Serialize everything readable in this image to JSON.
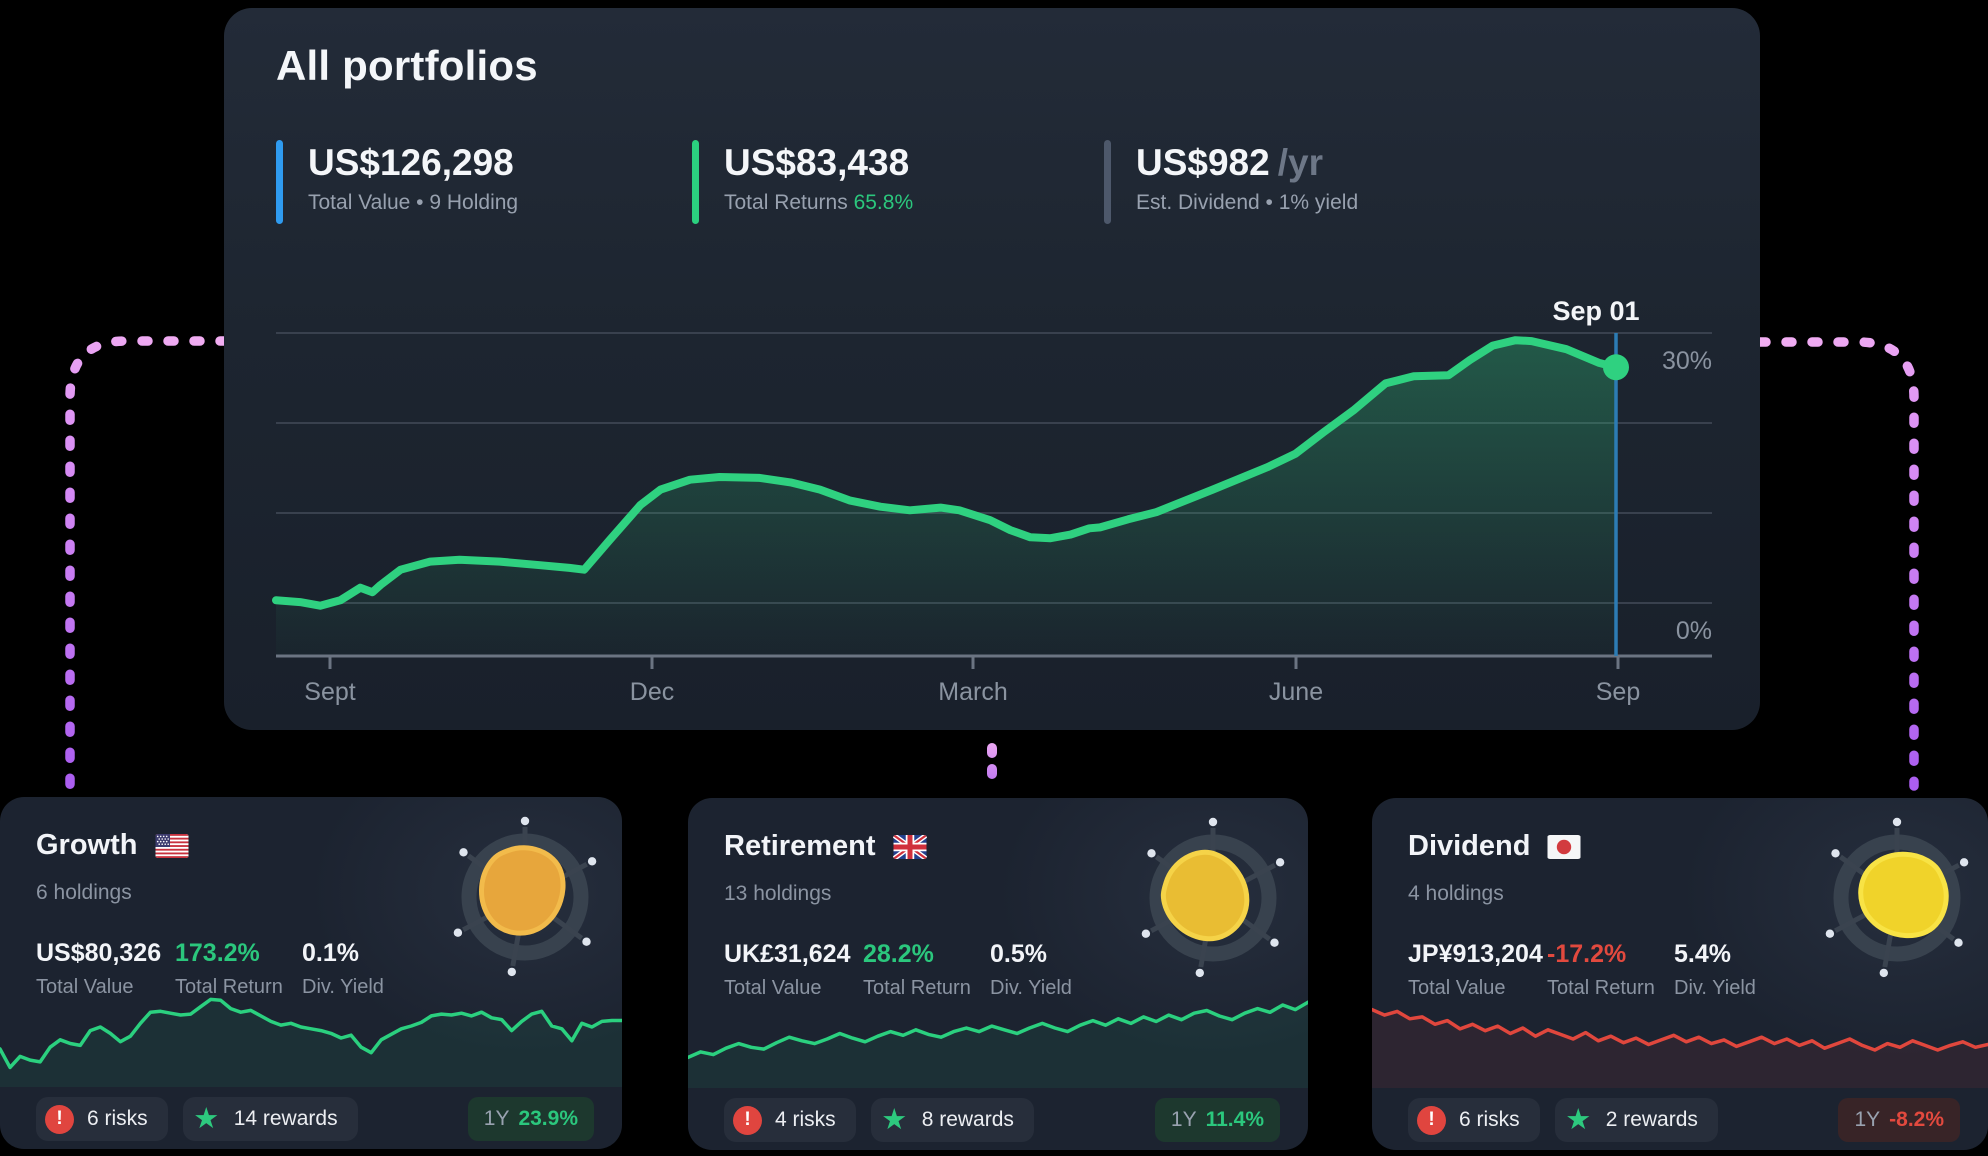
{
  "page": {
    "bg": "#000000"
  },
  "main_card": {
    "title": "All portfolios",
    "stats": [
      {
        "value": "US$126,298",
        "suffix": "",
        "label": "Total Value • 9 Holding",
        "label_highlight": "",
        "accent": "#2f9bf0"
      },
      {
        "value": "US$83,438",
        "suffix": "",
        "label": "Total Returns",
        "label_highlight": "65.8%",
        "accent": "#2bd07f"
      },
      {
        "value": "US$982",
        "suffix": "/yr",
        "label": "Est. Dividend • 1% yield",
        "label_highlight": "",
        "accent": "#4d586b"
      }
    ],
    "chart": {
      "type": "area",
      "tooltip": "Sep 01",
      "x_labels": [
        "Sept",
        "Dec",
        "March",
        "June",
        "Sep"
      ],
      "y_labels": [
        {
          "text": "30%",
          "pct": 30
        },
        {
          "text": "0%",
          "pct": 0
        }
      ],
      "line_color": "#2fd180",
      "cursor_color": "#2d7cb4",
      "series": [
        [
          0,
          0.3
        ],
        [
          0.018,
          0.1
        ],
        [
          0.033,
          -0.3
        ],
        [
          0.048,
          0.3
        ],
        [
          0.063,
          1.7
        ],
        [
          0.072,
          1.2
        ],
        [
          0.078,
          2.0
        ],
        [
          0.093,
          3.7
        ],
        [
          0.115,
          4.6
        ],
        [
          0.137,
          4.8
        ],
        [
          0.167,
          4.6
        ],
        [
          0.197,
          4.2
        ],
        [
          0.219,
          3.9
        ],
        [
          0.23,
          3.7
        ],
        [
          0.249,
          7.0
        ],
        [
          0.272,
          10.9
        ],
        [
          0.287,
          12.6
        ],
        [
          0.309,
          13.7
        ],
        [
          0.331,
          14.0
        ],
        [
          0.361,
          13.9
        ],
        [
          0.384,
          13.4
        ],
        [
          0.406,
          12.6
        ],
        [
          0.428,
          11.4
        ],
        [
          0.451,
          10.7
        ],
        [
          0.473,
          10.3
        ],
        [
          0.496,
          10.6
        ],
        [
          0.51,
          10.3
        ],
        [
          0.533,
          9.2
        ],
        [
          0.548,
          8.1
        ],
        [
          0.563,
          7.3
        ],
        [
          0.578,
          7.2
        ],
        [
          0.593,
          7.6
        ],
        [
          0.607,
          8.3
        ],
        [
          0.615,
          8.4
        ],
        [
          0.636,
          9.3
        ],
        [
          0.657,
          10.1
        ],
        [
          0.699,
          12.6
        ],
        [
          0.74,
          15.1
        ],
        [
          0.761,
          16.6
        ],
        [
          0.782,
          19.0
        ],
        [
          0.804,
          21.4
        ],
        [
          0.816,
          22.9
        ],
        [
          0.828,
          24.4
        ],
        [
          0.849,
          25.2
        ],
        [
          0.875,
          25.3
        ],
        [
          0.891,
          27.0
        ],
        [
          0.908,
          28.6
        ],
        [
          0.925,
          29.2
        ],
        [
          0.937,
          29.1
        ],
        [
          0.963,
          28.2
        ],
        [
          0.987,
          26.7
        ],
        [
          1,
          26.2
        ]
      ]
    }
  },
  "portfolio_cards": [
    {
      "name": "Growth",
      "flag": "us",
      "holdings": "6 holdings",
      "stats": [
        {
          "value": "US$80,326",
          "label": "Total Value",
          "tone": "plain"
        },
        {
          "value": "173.2%",
          "label": "Total Return",
          "tone": "positive"
        },
        {
          "value": "0.1%",
          "label": "Div. Yield",
          "tone": "plain"
        }
      ],
      "risks": "6 risks",
      "rewards": "14 rewards",
      "period_label": "1Y",
      "period_return": "23.9%",
      "trend": "up",
      "icon": {
        "fill": "#e7a63c",
        "stroke": "#f2bb4b"
      },
      "spark_color": "#2bd07f",
      "spark_fill": "rgba(43,208,127,0.08)",
      "spark": [
        38,
        18,
        30,
        26,
        24,
        40,
        48,
        44,
        42,
        58,
        62,
        55,
        46,
        52,
        66,
        78,
        79,
        77,
        75,
        76,
        84,
        92,
        91,
        82,
        78,
        80,
        74,
        68,
        64,
        66,
        62,
        60,
        58,
        55,
        50,
        53,
        40,
        34,
        48,
        54,
        60,
        63,
        67,
        74,
        76,
        75,
        77,
        74,
        78,
        72,
        70,
        58,
        68,
        76,
        79,
        63,
        60,
        47,
        66,
        62,
        68,
        69,
        69
      ]
    },
    {
      "name": "Retirement",
      "flag": "gb",
      "holdings": "13 holdings",
      "stats": [
        {
          "value": "UK£31,624",
          "label": "Total Value",
          "tone": "plain"
        },
        {
          "value": "28.2%",
          "label": "Total Return",
          "tone": "positive"
        },
        {
          "value": "0.5%",
          "label": "Div. Yield",
          "tone": "plain"
        }
      ],
      "risks": "4 risks",
      "rewards": "8 rewards",
      "period_label": "1Y",
      "period_return": "11.4%",
      "trend": "up",
      "icon": {
        "fill": "#e9bd33",
        "stroke": "#f5d348"
      },
      "spark_color": "#2bd07f",
      "spark_fill": "rgba(43,208,127,0.08)",
      "spark": [
        30,
        36,
        33,
        40,
        45,
        41,
        39,
        46,
        52,
        48,
        45,
        50,
        56,
        51,
        47,
        53,
        58,
        54,
        60,
        55,
        52,
        58,
        62,
        58,
        64,
        60,
        56,
        62,
        67,
        62,
        58,
        65,
        70,
        65,
        72,
        67,
        74,
        69,
        76,
        71,
        78,
        81,
        75,
        71,
        78,
        83,
        79,
        87,
        82,
        90
      ]
    },
    {
      "name": "Dividend",
      "flag": "jp",
      "holdings": "4 holdings",
      "stats": [
        {
          "value": "JP¥913,204",
          "label": "Total Value",
          "tone": "plain"
        },
        {
          "value": "-17.2%",
          "label": "Total Return",
          "tone": "negative"
        },
        {
          "value": "5.4%",
          "label": "Div. Yield",
          "tone": "plain"
        }
      ],
      "risks": "6 risks",
      "rewards": "2 rewards",
      "period_label": "1Y",
      "period_return": "-8.2%",
      "trend": "down",
      "icon": {
        "fill": "#f0d32a",
        "stroke": "#f8e345"
      },
      "spark_color": "#e0473d",
      "spark_fill": "rgba(224,71,61,0.09)",
      "spark": [
        82,
        76,
        80,
        72,
        74,
        66,
        70,
        61,
        66,
        59,
        64,
        56,
        62,
        53,
        60,
        55,
        50,
        57,
        48,
        53,
        46,
        51,
        44,
        49,
        54,
        47,
        52,
        45,
        49,
        42,
        47,
        52,
        45,
        50,
        43,
        48,
        40,
        45,
        50,
        43,
        38,
        45,
        41,
        48,
        43,
        38,
        43,
        47,
        41,
        44
      ]
    }
  ]
}
